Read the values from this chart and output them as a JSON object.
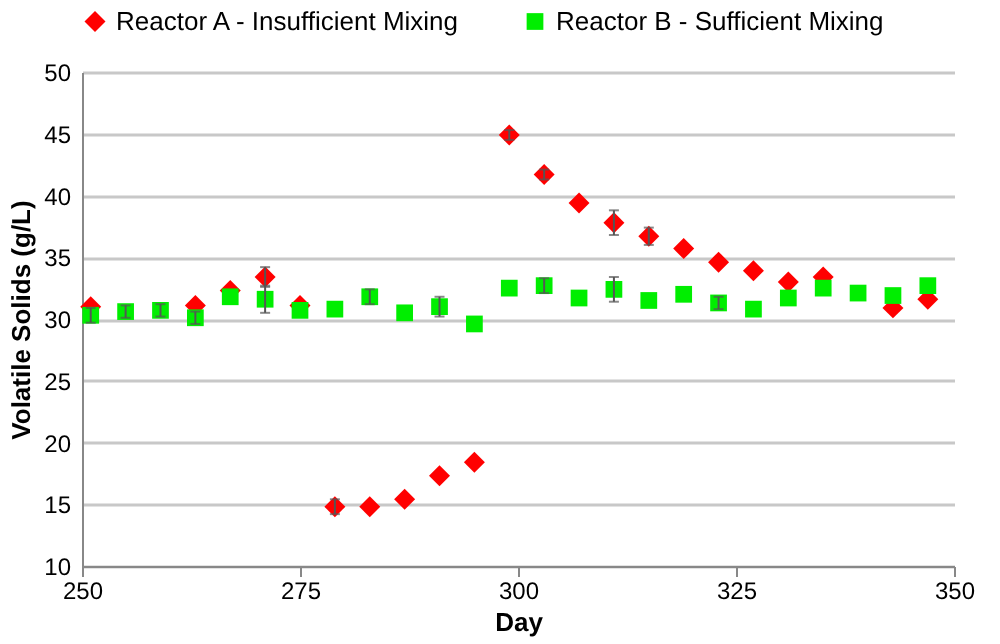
{
  "chart_data": {
    "type": "scatter",
    "xlabel": "Day",
    "ylabel": "Volatile Solids (g/L)",
    "xlim": [
      250,
      350
    ],
    "xticks": [
      250,
      275,
      300,
      325,
      350
    ],
    "ylim": [
      10,
      50
    ],
    "yticks": [
      10,
      15,
      20,
      25,
      30,
      35,
      40,
      45,
      50
    ],
    "grid": "y",
    "legend": "top",
    "series": [
      {
        "name": "Reactor A - Insufficient Mixing",
        "color": "#ff0000",
        "marker": "diamond",
        "x": [
          251,
          263,
          267,
          271,
          275,
          279,
          283,
          287,
          291,
          295,
          299,
          303,
          307,
          311,
          315,
          319,
          323,
          327,
          331,
          335,
          343,
          347
        ],
        "values": [
          31.0,
          31.1,
          32.3,
          33.4,
          31.1,
          14.8,
          14.8,
          15.4,
          17.3,
          18.4,
          44.9,
          41.7,
          39.4,
          37.8,
          36.7,
          35.7,
          34.6,
          33.9,
          33.0,
          33.4,
          30.9,
          31.6
        ],
        "errors": [
          null,
          null,
          null,
          0.8,
          null,
          0.6,
          null,
          null,
          null,
          null,
          0.4,
          0.4,
          null,
          1.0,
          0.7,
          null,
          null,
          null,
          null,
          null,
          null,
          null
        ]
      },
      {
        "name": "Reactor B - Sufficient Mixing",
        "color": "#00ee00",
        "marker": "square",
        "x": [
          251,
          255,
          259,
          263,
          267,
          271,
          275,
          279,
          283,
          287,
          291,
          295,
          299,
          303,
          307,
          311,
          315,
          319,
          323,
          327,
          331,
          335,
          339,
          343,
          347
        ],
        "values": [
          30.3,
          30.6,
          30.7,
          30.1,
          31.8,
          31.6,
          30.7,
          30.8,
          31.8,
          30.5,
          31.0,
          29.6,
          32.5,
          32.7,
          31.7,
          32.4,
          31.5,
          32.0,
          31.3,
          30.8,
          31.7,
          32.5,
          32.1,
          31.9,
          32.7
        ],
        "errors": [
          0.6,
          0.5,
          0.5,
          0.5,
          null,
          1.1,
          null,
          null,
          0.6,
          null,
          0.8,
          null,
          null,
          0.6,
          null,
          1.0,
          null,
          null,
          0.5,
          null,
          null,
          null,
          null,
          null,
          null
        ]
      }
    ]
  }
}
